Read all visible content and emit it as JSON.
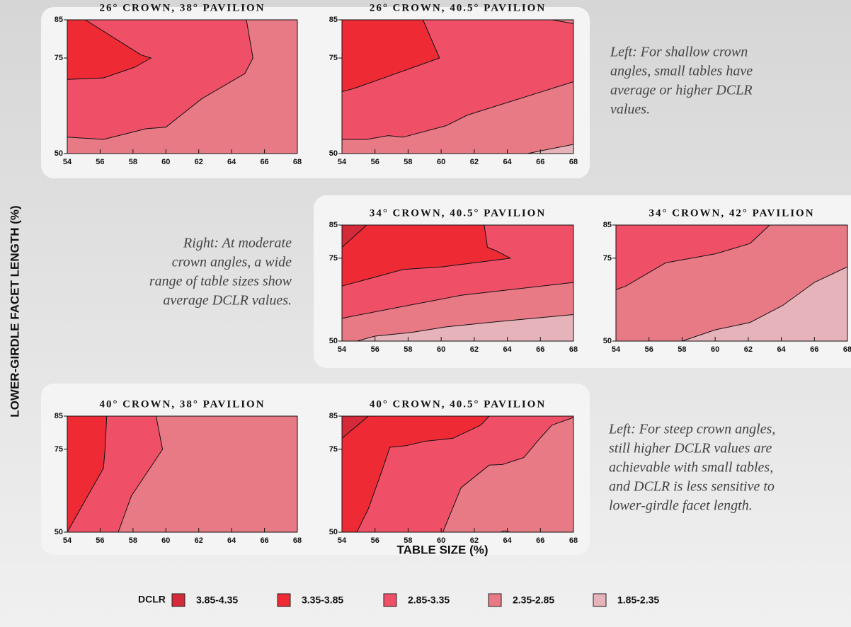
{
  "y_axis_label": "LOWER-GIRDLE FACET LENGTH (%)",
  "x_axis_label": "TABLE SIZE (%)",
  "notes": [
    [
      "Left: For shallow crown",
      "angles, small tables have",
      "average or higher DCLR",
      "values."
    ],
    [
      "Right: At moderate",
      "crown angles, a wide",
      "range of table sizes show",
      "average DCLR values."
    ],
    [
      "Left: For steep crown angles,",
      "still higher DCLR values are",
      "achievable with small tables,",
      "and DCLR is less sensitive to",
      "lower-girdle facet length."
    ]
  ],
  "legend": {
    "title": "DCLR",
    "items": [
      {
        "label": "3.85-4.35",
        "color": "#d42a3a"
      },
      {
        "label": "3.35-3.85",
        "color": "#ee2a35"
      },
      {
        "label": "2.85-3.35",
        "color": "#ef5068"
      },
      {
        "label": "2.35-2.85",
        "color": "#e87a86"
      },
      {
        "label": "1.85-2.35",
        "color": "#e6b3ba"
      }
    ]
  },
  "chart_data": [
    {
      "type": "contour",
      "title": "26° CROWN, 38° PAVILION",
      "xlim": [
        54,
        68
      ],
      "ylim": [
        50,
        85
      ],
      "xticks": [
        54,
        56,
        58,
        60,
        62,
        64,
        66,
        68
      ],
      "yticks": [
        50,
        75,
        85
      ],
      "regions": [
        {
          "color": "#e87a86",
          "x": [
            54,
            68,
            68,
            54
          ],
          "y": [
            50,
            50,
            85,
            85
          ]
        },
        {
          "color": "#ef5068",
          "x": [
            54,
            64.9,
            65.3,
            64.8,
            62.2,
            60,
            58.8,
            56.2,
            54
          ],
          "y": [
            85,
            85,
            75,
            70.9,
            64.4,
            56.9,
            56.5,
            53.7,
            54.3
          ]
        },
        {
          "color": "#ee2a35",
          "x": [
            54,
            55.1,
            58.5,
            59.1,
            58.1,
            56.2,
            54
          ],
          "y": [
            85,
            85,
            75.8,
            75,
            72.6,
            69.8,
            69.4
          ]
        }
      ]
    },
    {
      "type": "contour",
      "title": "26° CROWN, 40.5° PAVILION",
      "xlim": [
        54,
        68
      ],
      "ylim": [
        50,
        85
      ],
      "xticks": [
        54,
        56,
        58,
        60,
        62,
        64,
        66,
        68
      ],
      "yticks": [
        50,
        75,
        85
      ],
      "regions": [
        {
          "color": "#ef5068",
          "x": [
            54,
            68,
            68,
            54
          ],
          "y": [
            50,
            50,
            85,
            85
          ]
        },
        {
          "color": "#e87a86",
          "x": [
            54,
            54,
            55.5,
            56.8,
            57.7,
            60.3,
            61.6,
            68,
            68
          ],
          "y": [
            50,
            53.7,
            53.7,
            54.7,
            54.3,
            57.3,
            60.1,
            68.8,
            50
          ]
        },
        {
          "color": "#e87a86",
          "x": [
            66.7,
            68,
            68
          ],
          "y": [
            85,
            85,
            84
          ]
        },
        {
          "color": "#e6b3ba",
          "x": [
            65.2,
            68,
            68
          ],
          "y": [
            50,
            52.4,
            50
          ]
        },
        {
          "color": "#ee2a35",
          "x": [
            54,
            58.9,
            59.9,
            56.4,
            54.7,
            54
          ],
          "y": [
            85,
            85,
            75,
            69.6,
            67,
            66.2
          ]
        }
      ]
    },
    {
      "type": "contour",
      "title": "34° CROWN, 40.5° PAVILION",
      "xlim": [
        54,
        68
      ],
      "ylim": [
        50,
        85
      ],
      "xticks": [
        54,
        56,
        58,
        60,
        62,
        64,
        66,
        68
      ],
      "yticks": [
        50,
        75,
        85
      ],
      "regions": [
        {
          "color": "#ef5068",
          "x": [
            54,
            68,
            68,
            54
          ],
          "y": [
            50,
            50,
            85,
            85
          ]
        },
        {
          "color": "#ee2a35",
          "x": [
            54,
            62.6,
            62.8,
            63.3,
            64.2,
            60.1,
            57.7,
            54
          ],
          "y": [
            85,
            85,
            78.3,
            77.3,
            75,
            72.4,
            71.6,
            66.6
          ]
        },
        {
          "color": "#d42a3a",
          "x": [
            54,
            55.5,
            54
          ],
          "y": [
            85,
            85,
            78.3
          ]
        },
        {
          "color": "#e87a86",
          "x": [
            54,
            54,
            57.3,
            61.2,
            68,
            68
          ],
          "y": [
            50,
            56.9,
            60.1,
            63.8,
            67.7,
            50
          ]
        },
        {
          "color": "#e6b3ba",
          "x": [
            54.9,
            56,
            58.2,
            60.3,
            63.3,
            68,
            68
          ],
          "y": [
            50,
            51.5,
            52.6,
            54.3,
            55.8,
            58,
            50
          ]
        }
      ]
    },
    {
      "type": "contour",
      "title": "34° CROWN, 42° PAVILION",
      "xlim": [
        54,
        68
      ],
      "ylim": [
        50,
        85
      ],
      "xticks": [
        54,
        56,
        58,
        60,
        62,
        64,
        66,
        68
      ],
      "yticks": [
        50,
        75,
        85
      ],
      "regions": [
        {
          "color": "#e87a86",
          "x": [
            54,
            68,
            68,
            54
          ],
          "y": [
            50,
            50,
            85,
            85
          ]
        },
        {
          "color": "#ef5068",
          "x": [
            54,
            63.3,
            62.1,
            60,
            57,
            54.6,
            54
          ],
          "y": [
            85,
            85,
            79.4,
            76.3,
            73.6,
            66.6,
            65.5
          ]
        },
        {
          "color": "#e6b3ba",
          "x": [
            58,
            60,
            62.1,
            64.1,
            66,
            68,
            68
          ],
          "y": [
            50,
            53.4,
            55.6,
            60.8,
            67.7,
            72.4,
            50
          ]
        }
      ]
    },
    {
      "type": "contour",
      "title": "40° CROWN, 38° PAVILION",
      "xlim": [
        54,
        68
      ],
      "ylim": [
        50,
        85
      ],
      "xticks": [
        54,
        56,
        58,
        60,
        62,
        64,
        66,
        68
      ],
      "yticks": [
        50,
        75,
        85
      ],
      "regions": [
        {
          "color": "#e87a86",
          "x": [
            54,
            68,
            68,
            54
          ],
          "y": [
            50,
            50,
            85,
            85
          ]
        },
        {
          "color": "#ef5068",
          "x": [
            54,
            59.4,
            59.8,
            57.9,
            57.1,
            54
          ],
          "y": [
            85,
            85,
            75,
            60.9,
            50,
            50
          ]
        },
        {
          "color": "#ee2a35",
          "x": [
            54,
            56.4,
            56.3,
            56.2,
            54
          ],
          "y": [
            85,
            85,
            75,
            69.3,
            50
          ]
        }
      ]
    },
    {
      "type": "contour",
      "title": "40° CROWN, 40.5° PAVILION",
      "xlim": [
        54,
        68
      ],
      "ylim": [
        50,
        85
      ],
      "xticks": [
        54,
        56,
        58,
        60,
        62,
        64,
        66,
        68
      ],
      "yticks": [
        50,
        75,
        85
      ],
      "regions": [
        {
          "color": "#ef5068",
          "x": [
            54,
            68,
            68,
            54
          ],
          "y": [
            50,
            50,
            85,
            85
          ]
        },
        {
          "color": "#ee2a35",
          "x": [
            54,
            62.9,
            62.4,
            60.7,
            59,
            57.9,
            56.9,
            56.4,
            55.6,
            54.9,
            54
          ],
          "y": [
            85,
            85,
            82.3,
            78.3,
            77.4,
            76.1,
            75.6,
            68.3,
            57.1,
            50,
            50
          ]
        },
        {
          "color": "#d42a3a",
          "x": [
            54,
            55.6,
            54
          ],
          "y": [
            85,
            85,
            78.3
          ]
        },
        {
          "color": "#e87a86",
          "x": [
            60.1,
            61.2,
            62.9,
            63.7,
            65,
            65.9,
            66.7,
            68,
            68
          ],
          "y": [
            50,
            63.4,
            70.2,
            70.4,
            72.5,
            77.9,
            82.3,
            84.6,
            50
          ]
        },
        {
          "color": "#e6b3ba",
          "x": [
            63.6,
            63.8,
            64.2
          ],
          "y": [
            50,
            50.4,
            50
          ]
        }
      ]
    }
  ]
}
